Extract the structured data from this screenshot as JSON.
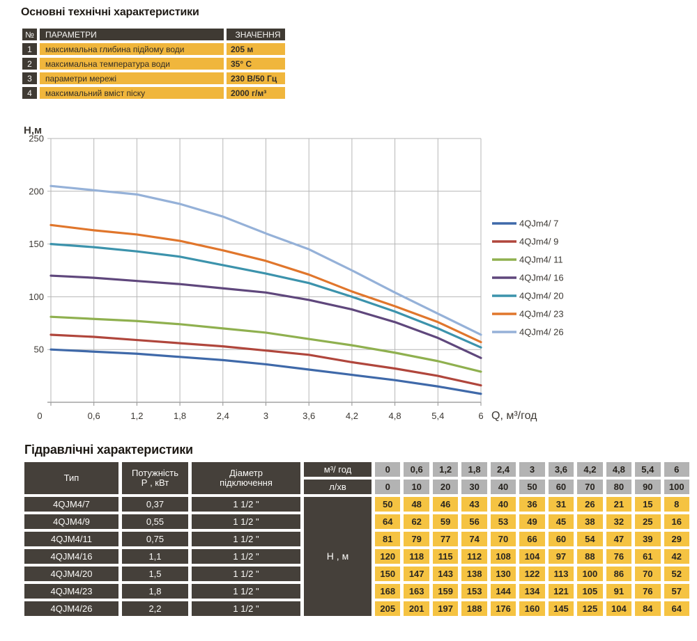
{
  "colors": {
    "dark_cell": "#3f3a33",
    "dark_cell_bottom": "#45403a",
    "yellow_top": "#f0b63c",
    "yellow_bottom": "#f5c342",
    "gray_cell": "#b3b3b3",
    "grid_line": "#b6b6b6",
    "axis_line": "#8f8f8f"
  },
  "top_section": {
    "title": "Основні технічні характеристики",
    "table": {
      "headers": {
        "num": "№",
        "param": "ПАРАМЕТРИ",
        "value": "ЗНАЧЕННЯ"
      },
      "rows": [
        {
          "num": "1",
          "param": "максимальна глибина підйому води",
          "value": "205 м"
        },
        {
          "num": "2",
          "param": "максимальна температура води",
          "value": "35° С"
        },
        {
          "num": "3",
          "param": "параметри мережі",
          "value": "230 В/50 Гц"
        },
        {
          "num": "4",
          "param": "максимальний вміст піску",
          "value": "2000 г/м³"
        }
      ]
    }
  },
  "chart_data": {
    "type": "line",
    "title": "",
    "ylabel": "Н,м",
    "xlabel": "Q,  м³/год",
    "xlim": [
      0,
      6
    ],
    "ylim": [
      0,
      250
    ],
    "grid": true,
    "legend_position": "right",
    "x": [
      0,
      0.6,
      1.2,
      1.8,
      2.4,
      3,
      3.6,
      4.2,
      4.8,
      5.4,
      6
    ],
    "x_tick_labels": [
      "0",
      "0,6",
      "1,2",
      "1,8",
      "2,4",
      "3",
      "3,6",
      "4,2",
      "4,8",
      "5,4",
      "6"
    ],
    "y_ticks": [
      0,
      50,
      100,
      150,
      200,
      250
    ],
    "y_tick_labels": [
      "50",
      "100",
      "150",
      "200",
      "250"
    ],
    "series": [
      {
        "name": "4QJm4/ 7",
        "color": "#3f69a9",
        "values": [
          50,
          48,
          46,
          43,
          40,
          36,
          31,
          26,
          21,
          15,
          8
        ]
      },
      {
        "name": "4QJm4/ 9",
        "color": "#b0463c",
        "values": [
          64,
          62,
          59,
          56,
          53,
          49,
          45,
          38,
          32,
          25,
          16
        ]
      },
      {
        "name": "4QJm4/ 11",
        "color": "#8fb04f",
        "values": [
          81,
          79,
          77,
          74,
          70,
          66,
          60,
          54,
          47,
          39,
          29
        ]
      },
      {
        "name": "4QJm4/ 16",
        "color": "#5f477c",
        "values": [
          120,
          118,
          115,
          112,
          108,
          104,
          97,
          88,
          76,
          61,
          42
        ]
      },
      {
        "name": "4QJm4/ 20",
        "color": "#3c93ac",
        "values": [
          150,
          147,
          143,
          138,
          130,
          122,
          113,
          100,
          86,
          70,
          52
        ]
      },
      {
        "name": "4QJm4/ 23",
        "color": "#e0762c",
        "values": [
          168,
          163,
          159,
          153,
          144,
          134,
          121,
          105,
          91,
          76,
          57
        ]
      },
      {
        "name": "4QJm4/ 26",
        "color": "#95b1d8",
        "values": [
          205,
          201,
          197,
          188,
          176,
          160,
          145,
          125,
          104,
          84,
          64
        ]
      }
    ]
  },
  "bottom_section": {
    "title": "Гідравлічні характеристики",
    "table": {
      "type_header": "Тип",
      "power_header1": "Потужність",
      "power_header2": "Р , кВт",
      "diameter_header1": "Діаметр",
      "diameter_header2": "підключення",
      "flow_m3_header": "м³/ год",
      "flow_lmin_header": "л/хв",
      "head_header": "Н , м",
      "flow_m3": [
        "0",
        "0,6",
        "1,2",
        "1,8",
        "2,4",
        "3",
        "3,6",
        "4,2",
        "4,8",
        "5,4",
        "6"
      ],
      "flow_lmin": [
        "0",
        "10",
        "20",
        "30",
        "40",
        "50",
        "60",
        "70",
        "80",
        "90",
        "100"
      ],
      "rows": [
        {
          "type": "4QJM4/7",
          "power": "0,37",
          "diameter": "1 1/2 \"",
          "heads": [
            "50",
            "48",
            "46",
            "43",
            "40",
            "36",
            "31",
            "26",
            "21",
            "15",
            "8"
          ]
        },
        {
          "type": "4QJM4/9",
          "power": "0,55",
          "diameter": "1 1/2 \"",
          "heads": [
            "64",
            "62",
            "59",
            "56",
            "53",
            "49",
            "45",
            "38",
            "32",
            "25",
            "16"
          ]
        },
        {
          "type": "4QJM4/11",
          "power": "0,75",
          "diameter": "1 1/2 \"",
          "heads": [
            "81",
            "79",
            "77",
            "74",
            "70",
            "66",
            "60",
            "54",
            "47",
            "39",
            "29"
          ]
        },
        {
          "type": "4QJM4/16",
          "power": "1,1",
          "diameter": "1 1/2 \"",
          "heads": [
            "120",
            "118",
            "115",
            "112",
            "108",
            "104",
            "97",
            "88",
            "76",
            "61",
            "42"
          ]
        },
        {
          "type": "4QJM4/20",
          "power": "1,5",
          "diameter": "1 1/2 \"",
          "heads": [
            "150",
            "147",
            "143",
            "138",
            "130",
            "122",
            "113",
            "100",
            "86",
            "70",
            "52"
          ]
        },
        {
          "type": "4QJM4/23",
          "power": "1,8",
          "diameter": "1 1/2 \"",
          "heads": [
            "168",
            "163",
            "159",
            "153",
            "144",
            "134",
            "121",
            "105",
            "91",
            "76",
            "57"
          ]
        },
        {
          "type": "4QJM4/26",
          "power": "2,2",
          "diameter": "1 1/2 \"",
          "heads": [
            "205",
            "201",
            "197",
            "188",
            "176",
            "160",
            "145",
            "125",
            "104",
            "84",
            "64"
          ]
        }
      ]
    }
  }
}
